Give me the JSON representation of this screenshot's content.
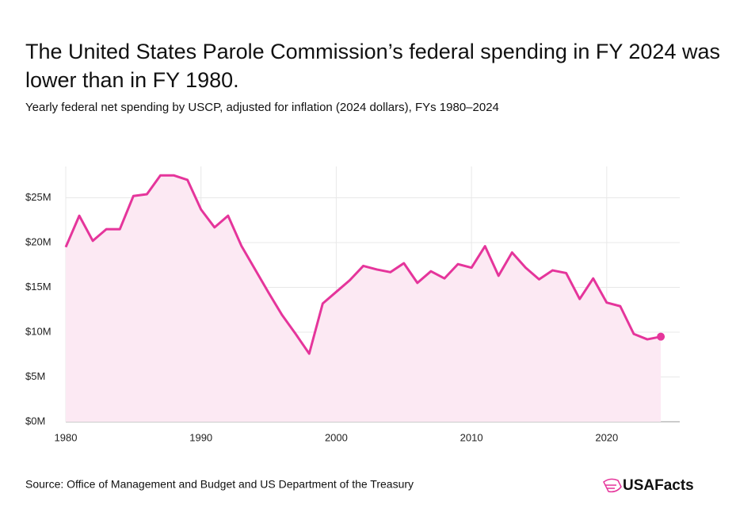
{
  "chart_data": {
    "type": "line",
    "title": "The United States Parole Commission’s federal spending in FY 2024 was lower than in FY 1980.",
    "subtitle": "Yearly federal net spending by USCP, adjusted for inflation (2024 dollars), FYs 1980–2024",
    "source": "Source: Office of Management and Budget and US Department of the Treasury",
    "brand": "USAFacts",
    "x": [
      1980,
      1981,
      1982,
      1983,
      1984,
      1985,
      1986,
      1987,
      1988,
      1989,
      1990,
      1991,
      1992,
      1993,
      1994,
      1995,
      1996,
      1997,
      1998,
      1999,
      2000,
      2001,
      2002,
      2003,
      2004,
      2005,
      2006,
      2007,
      2008,
      2009,
      2010,
      2011,
      2012,
      2013,
      2014,
      2015,
      2016,
      2017,
      2018,
      2019,
      2020,
      2021,
      2022,
      2023,
      2024
    ],
    "series": [
      {
        "color": "#e5359b",
        "fill": "#fce9f3",
        "values": [
          19500000,
          23000000,
          20200000,
          21500000,
          21500000,
          25200000,
          25400000,
          27500000,
          27500000,
          27000000,
          23700000,
          21700000,
          23000000,
          19600000,
          17000000,
          14400000,
          11900000,
          9800000,
          7600000,
          13200000,
          14500000,
          15800000,
          17400000,
          17000000,
          16700000,
          17700000,
          15500000,
          16800000,
          16000000,
          17600000,
          17200000,
          19600000,
          16300000,
          18900000,
          17200000,
          15900000,
          16900000,
          16600000,
          13700000,
          16000000,
          13300000,
          12900000,
          9800000,
          9200000,
          9500000
        ]
      }
    ],
    "xlim": [
      1980,
      2025.4
    ],
    "ylim": [
      0,
      28500000
    ],
    "xticks": [
      1980,
      1990,
      2000,
      2010,
      2020
    ],
    "yticks": [
      {
        "value": 0,
        "label": "$0M"
      },
      {
        "value": 5000000,
        "label": "$5M"
      },
      {
        "value": 10000000,
        "label": "$10M"
      },
      {
        "value": 15000000,
        "label": "$15M"
      },
      {
        "value": 20000000,
        "label": "$20M"
      },
      {
        "value": 25000000,
        "label": "$25M"
      }
    ],
    "grid": true
  }
}
